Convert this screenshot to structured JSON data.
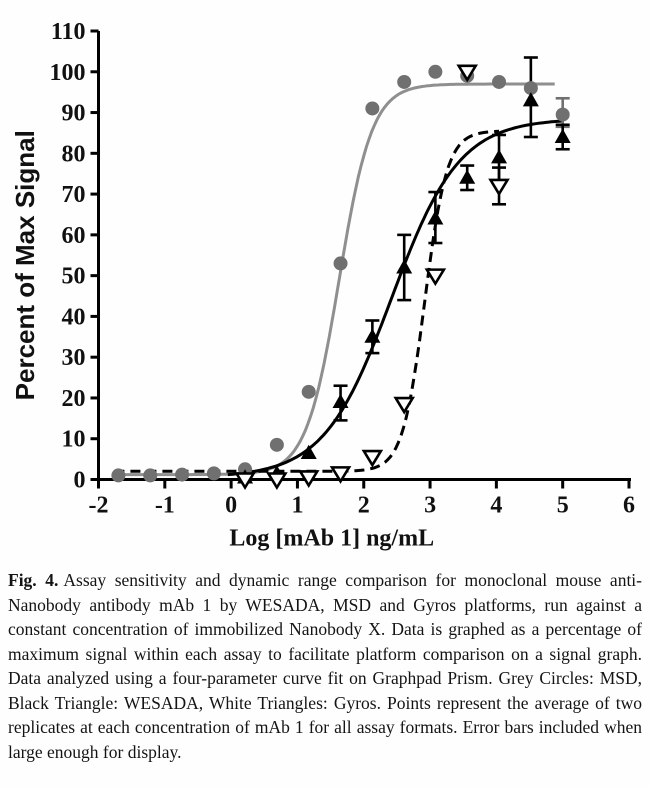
{
  "figure": {
    "caption_label": "Fig. 4.",
    "caption_text": "Assay sensitivity and dynamic range comparison for monoclonal mouse anti-Nanobody antibody mAb 1 by WESADA, MSD and Gyros platforms, run against a constant concentration of immobilized Nanobody X. Data is graphed as a percentage of maximum signal within each assay to facilitate platform comparison on a signal graph. Data analyzed using a four-parameter curve fit on Graphpad Prism. Grey Circles: MSD, Black Triangle: WESADA, White Triangles: Gyros. Points represent the average of two replicates at each concentration of mAb 1 for all assay formats. Error bars included when large enough for display."
  },
  "chart_data": {
    "type": "scatter",
    "title": "",
    "xlabel": "Log [mAb 1] ng/mL",
    "ylabel": "Percent of Max Signal",
    "xlim": [
      -2,
      6
    ],
    "ylim": [
      0,
      110
    ],
    "x_ticks": [
      -2,
      -1,
      0,
      1,
      2,
      3,
      4,
      5,
      6
    ],
    "y_ticks": [
      0,
      10,
      20,
      30,
      40,
      50,
      60,
      70,
      80,
      90,
      100,
      110
    ],
    "grid": false,
    "legend_position": "none (legend given in caption)",
    "colors": {
      "grey_marker": "#707070",
      "grey_line": "#8f8f8f",
      "black": "#000000",
      "axis": "#000000"
    },
    "series": [
      {
        "name": "MSD",
        "marker": "filled-circle",
        "marker_color": "#707070",
        "line_style": "solid",
        "line_color": "#8f8f8f",
        "fit_4pl": {
          "bottom": 1.2,
          "top": 97,
          "logEC50": 1.63,
          "hill": 1.75,
          "x_start": -1.76,
          "x_end": 4.9
        },
        "points": [
          {
            "x": -1.7,
            "y": 1
          },
          {
            "x": -1.22,
            "y": 1
          },
          {
            "x": -0.74,
            "y": 1.2
          },
          {
            "x": -0.26,
            "y": 1.5
          },
          {
            "x": 0.21,
            "y": 2.5
          },
          {
            "x": 0.69,
            "y": 8.5
          },
          {
            "x": 1.17,
            "y": 21.5
          },
          {
            "x": 1.65,
            "y": 53
          },
          {
            "x": 2.13,
            "y": 91
          },
          {
            "x": 2.61,
            "y": 97.5
          },
          {
            "x": 3.08,
            "y": 100
          },
          {
            "x": 3.56,
            "y": 99
          },
          {
            "x": 4.04,
            "y": 97.5
          },
          {
            "x": 4.52,
            "y": 96
          },
          {
            "x": 5.0,
            "y": 89.5
          }
        ],
        "error_bars": [
          {
            "x": 5.0,
            "lo": 86.5,
            "hi": 93.5
          }
        ]
      },
      {
        "name": "WESADA",
        "marker": "filled-up-triangle",
        "marker_color": "#000000",
        "line_style": "solid",
        "line_color": "#000000",
        "fit_4pl": {
          "bottom": 0.5,
          "top": 88.5,
          "logEC50": 2.42,
          "hill": 0.85,
          "x_start": -0.05,
          "x_end": 5.02
        },
        "points": [
          {
            "x": 0.21,
            "y": 0.5
          },
          {
            "x": 0.69,
            "y": 1.5
          },
          {
            "x": 1.17,
            "y": 6.5
          },
          {
            "x": 1.65,
            "y": 19
          },
          {
            "x": 2.13,
            "y": 35
          },
          {
            "x": 2.61,
            "y": 52
          },
          {
            "x": 3.08,
            "y": 64
          },
          {
            "x": 3.56,
            "y": 74
          },
          {
            "x": 4.04,
            "y": 79
          },
          {
            "x": 4.52,
            "y": 93
          },
          {
            "x": 5.0,
            "y": 84
          }
        ],
        "error_bars": [
          {
            "x": 1.65,
            "lo": 14.5,
            "hi": 23
          },
          {
            "x": 2.13,
            "lo": 31,
            "hi": 39
          },
          {
            "x": 2.61,
            "lo": 44,
            "hi": 60
          },
          {
            "x": 3.08,
            "lo": 58,
            "hi": 70.5
          },
          {
            "x": 3.56,
            "lo": 71,
            "hi": 77
          },
          {
            "x": 4.04,
            "lo": 73,
            "hi": 84.5
          },
          {
            "x": 4.52,
            "lo": 84,
            "hi": 103.5
          },
          {
            "x": 5.0,
            "lo": 81,
            "hi": 87
          }
        ]
      },
      {
        "name": "Gyros",
        "marker": "open-down-triangle",
        "marker_color": "#ffffff",
        "marker_stroke": "#000000",
        "line_style": "dashed",
        "line_color": "#000000",
        "fit_4pl": {
          "bottom": 2,
          "top": 85.5,
          "logEC50": 2.92,
          "hill": 2.6,
          "x_start": -1.76,
          "x_end": 4.06
        },
        "points": [
          {
            "x": 0.21,
            "y": 0
          },
          {
            "x": 0.69,
            "y": 0
          },
          {
            "x": 1.17,
            "y": 0.5
          },
          {
            "x": 1.65,
            "y": 1.5
          },
          {
            "x": 2.13,
            "y": 5.5
          },
          {
            "x": 2.61,
            "y": 18.5
          },
          {
            "x": 3.08,
            "y": 50
          },
          {
            "x": 3.56,
            "y": 100
          },
          {
            "x": 4.04,
            "y": 72
          }
        ],
        "error_bars": [
          {
            "x": 4.04,
            "lo": 67.5,
            "hi": 76.5
          }
        ]
      }
    ]
  }
}
